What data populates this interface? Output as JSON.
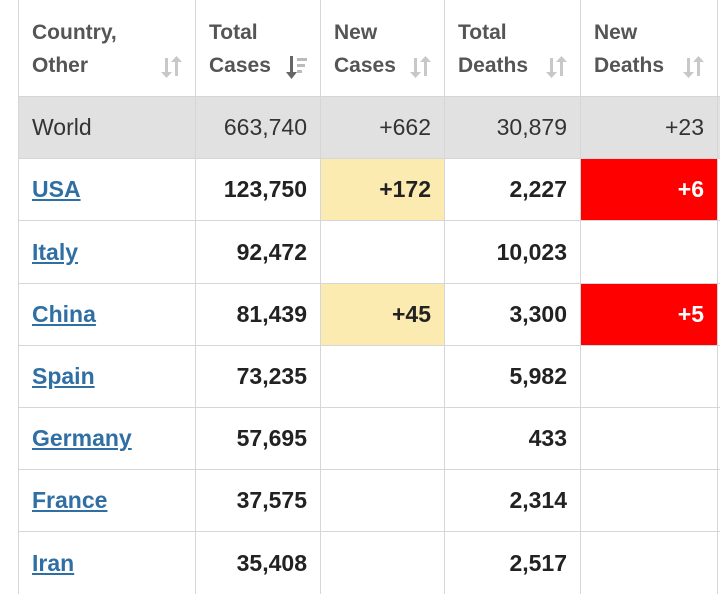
{
  "headers": [
    {
      "line1": "Country,",
      "line2": "Other"
    },
    {
      "line1": "Total",
      "line2": "Cases"
    },
    {
      "line1": "New",
      "line2": "Cases"
    },
    {
      "line1": "Total",
      "line2": "Deaths"
    },
    {
      "line1": "New",
      "line2": "Deaths"
    }
  ],
  "world": {
    "country": "World",
    "total_cases": "663,740",
    "new_cases": "+662",
    "total_deaths": "30,879",
    "new_deaths": "+23"
  },
  "rows": [
    {
      "country": "USA",
      "total_cases": "123,750",
      "new_cases": "+172",
      "total_deaths": "2,227",
      "new_deaths": "+6"
    },
    {
      "country": "Italy",
      "total_cases": "92,472",
      "new_cases": "",
      "total_deaths": "10,023",
      "new_deaths": ""
    },
    {
      "country": "China",
      "total_cases": "81,439",
      "new_cases": "+45",
      "total_deaths": "3,300",
      "new_deaths": "+5"
    },
    {
      "country": "Spain",
      "total_cases": "73,235",
      "new_cases": "",
      "total_deaths": "5,982",
      "new_deaths": ""
    },
    {
      "country": "Germany",
      "total_cases": "57,695",
      "new_cases": "",
      "total_deaths": "433",
      "new_deaths": ""
    },
    {
      "country": "France",
      "total_cases": "37,575",
      "new_cases": "",
      "total_deaths": "2,314",
      "new_deaths": ""
    },
    {
      "country": "Iran",
      "total_cases": "35,408",
      "new_cases": "",
      "total_deaths": "2,517",
      "new_deaths": ""
    }
  ],
  "colors": {
    "new_cases_highlight": "#fcebb0",
    "new_deaths_highlight": "#ff0000",
    "link": "#2f6fa3",
    "world_row": "#e1e1e1"
  }
}
